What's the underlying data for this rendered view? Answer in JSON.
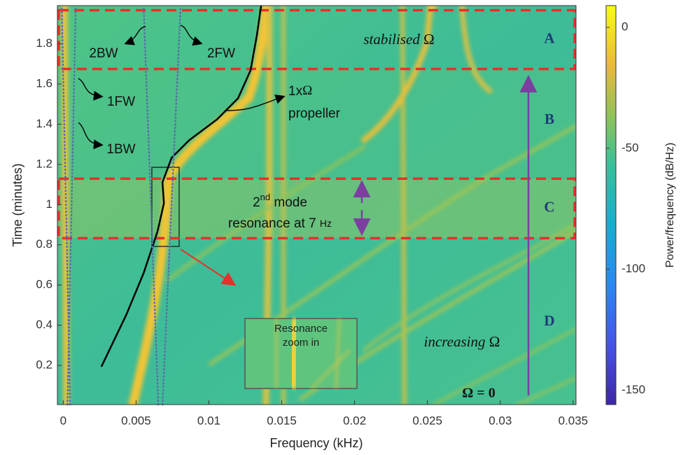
{
  "chart_data": {
    "type": "spectrogram",
    "xlabel": "Frequency (kHz)",
    "ylabel": "Time (minutes)",
    "xlim": [
      -0.0004,
      0.0352
    ],
    "ylim": [
      0.005,
      1.99
    ],
    "xticks": [
      0,
      0.005,
      0.01,
      0.015,
      0.02,
      0.025,
      0.03,
      0.035
    ],
    "yticks": [
      0.2,
      0.4,
      0.6,
      0.8,
      1,
      1.2,
      1.4,
      1.6,
      1.8
    ],
    "colorbar": {
      "label": "Power/frequency (dB/Hz)",
      "clim": [
        -156,
        9
      ],
      "ticks": [
        0,
        -50,
        -100,
        -150
      ]
    },
    "lines": [
      {
        "color": "#000000",
        "style": "solid",
        "x": [
          0.00264,
          0.00432,
          0.00552,
          0.00648,
          0.00691,
          0.00681,
          0.00744,
          0.00864,
          0.01056,
          0.012,
          0.01286,
          0.01329,
          0.01358
        ],
        "y": [
          0.197,
          0.45,
          0.659,
          0.868,
          1.007,
          1.111,
          1.233,
          1.32,
          1.424,
          1.529,
          1.668,
          1.842,
          1.988
        ]
      },
      {
        "color": "#5a6fa8",
        "style": "dotted",
        "x": [
          0.00048,
          -0.0001
        ],
        "y": [
          0.005,
          1.988
        ]
      },
      {
        "color": "#5a6fa8",
        "style": "dotted",
        "x": [
          0.00029,
          0.00086
        ],
        "y": [
          0.005,
          1.988
        ]
      },
      {
        "color": "#5a6fa8",
        "style": "dotted",
        "x": [
          0.00653,
          0.00552
        ],
        "y": [
          0.005,
          1.988
        ]
      },
      {
        "color": "#5a6fa8",
        "style": "dotted",
        "x": [
          0.00681,
          0.00806
        ],
        "y": [
          0.005,
          1.988
        ]
      }
    ],
    "regions": [
      {
        "label": "A",
        "color": "#e8302a",
        "ylim": [
          1.675,
          1.967
        ]
      },
      {
        "label": "C",
        "color": "#e8302a",
        "ylim": [
          0.833,
          1.129
        ]
      }
    ],
    "annotations": {
      "mode_2bw": "2BW",
      "mode_2fw": "2FW",
      "mode_1fw": "1FW",
      "mode_1bw": "1BW",
      "propeller": [
        "1x",
        "Ω",
        "propeller"
      ],
      "stabilised": [
        "stabilised ",
        "Ω"
      ],
      "region_b": "B",
      "region_d": "D",
      "resonance": [
        "2",
        "nd",
        " mode",
        "resonance at 7 ",
        "Hz"
      ],
      "zoom": [
        "Resonance",
        "zoom in"
      ],
      "increasing": [
        "increasing ",
        "Ω"
      ],
      "omega_zero": "Ω = 0"
    }
  }
}
